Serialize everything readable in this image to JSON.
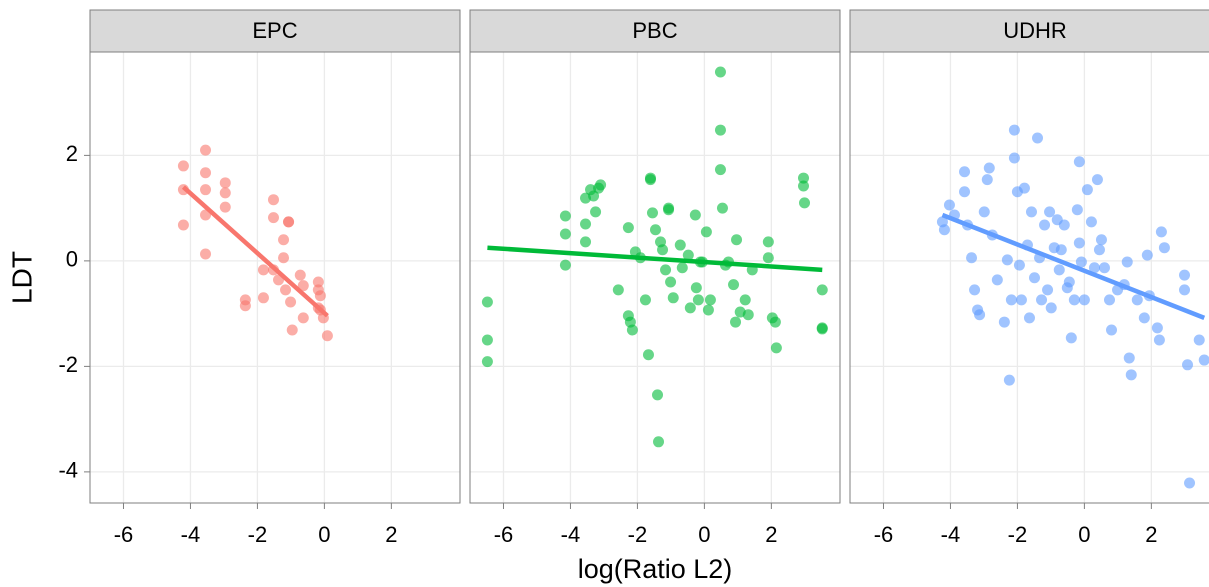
{
  "chart_data": [
    {
      "type": "scatter",
      "title": "EPC",
      "color": "#F8766D",
      "ylabel": "LDT",
      "grid": true,
      "xlim": [
        -7,
        4.05
      ],
      "ylim": [
        -4.59,
        3.96
      ],
      "xticks": [
        -6,
        -4,
        -2,
        0,
        2
      ],
      "yticks": [
        -4,
        -2,
        0,
        2
      ],
      "x": [
        -4.21,
        -4.21,
        -4.21,
        -3.55,
        -3.55,
        -3.55,
        -3.55,
        -3.55,
        -2.96,
        -2.96,
        -2.96,
        -2.36,
        -2.36,
        -1.82,
        -1.82,
        -1.52,
        -1.52,
        -1.52,
        -1.37,
        -1.22,
        -1.22,
        -1.16,
        -1.07,
        -1.07,
        -1.01,
        -0.96,
        -0.72,
        -0.63,
        -0.63,
        -0.18,
        -0.18,
        -0.18,
        -0.12,
        -0.12,
        -0.03,
        0.09
      ],
      "y": [
        1.8,
        1.35,
        0.68,
        2.1,
        1.67,
        1.35,
        0.87,
        0.13,
        1.48,
        1.29,
        1.02,
        -0.74,
        -0.85,
        -0.17,
        -0.7,
        1.16,
        0.82,
        -0.17,
        -0.36,
        0.4,
        0.06,
        -0.55,
        0.74,
        0.74,
        -0.78,
        -1.31,
        -0.27,
        -0.47,
        -1.08,
        -0.4,
        -0.55,
        -0.89,
        -0.66,
        -0.93,
        -1.08,
        -1.42
      ],
      "fit": {
        "x": [
          -4.21,
          0.09
        ],
        "y": [
          1.4,
          -1.04
        ]
      }
    },
    {
      "type": "scatter",
      "title": "PBC",
      "color": "#00BA38",
      "xlabel": "log(Ratio L2)",
      "grid": true,
      "xlim": [
        -7,
        4.05
      ],
      "ylim": [
        -4.59,
        3.96
      ],
      "xticks": [
        -6,
        -4,
        -2,
        0,
        2
      ],
      "yticks": [
        -4,
        -2,
        0,
        2
      ],
      "x": [
        -6.48,
        -6.48,
        -6.48,
        -4.15,
        -4.15,
        -4.15,
        -3.55,
        -3.55,
        -3.55,
        -3.4,
        -3.25,
        -3.16,
        -3.1,
        -3.31,
        -2.57,
        -2.27,
        -2.27,
        -2.21,
        -2.15,
        -2.06,
        -1.91,
        -1.76,
        -1.67,
        -1.61,
        -1.61,
        -1.55,
        -1.46,
        -1.4,
        -1.37,
        -1.31,
        -1.25,
        -1.16,
        -1.07,
        -1.07,
        -1.01,
        -0.93,
        -0.72,
        -0.66,
        -0.48,
        -0.42,
        -0.27,
        -0.24,
        -0.18,
        -0.12,
        -0.06,
        0.06,
        0.12,
        0.18,
        0.48,
        0.48,
        0.48,
        0.54,
        0.63,
        0.72,
        0.87,
        0.93,
        0.96,
        1.07,
        1.22,
        1.31,
        1.43,
        1.91,
        1.91,
        2.03,
        2.12,
        2.15,
        2.96,
        2.96,
        2.99,
        3.52,
        3.52,
        3.52
      ],
      "y": [
        -0.78,
        -1.5,
        -1.91,
        0.85,
        0.51,
        -0.08,
        1.19,
        0.7,
        0.36,
        1.35,
        0.93,
        1.38,
        1.44,
        1.23,
        -0.55,
        0.63,
        -1.04,
        -1.16,
        -1.31,
        0.17,
        0.06,
        -0.74,
        -1.78,
        1.54,
        1.57,
        0.91,
        0.59,
        -2.54,
        -3.43,
        0.36,
        0.21,
        -0.17,
        0.97,
        1.0,
        -0.4,
        -0.7,
        0.3,
        -0.13,
        0.11,
        -0.89,
        0.87,
        -0.51,
        -0.74,
        -0.02,
        -0.02,
        0.55,
        -0.93,
        -0.74,
        1.73,
        2.48,
        3.58,
        1.0,
        -0.08,
        -0.02,
        -0.45,
        -1.16,
        0.4,
        -0.97,
        -0.74,
        -1.02,
        -0.17,
        0.36,
        0.06,
        -1.08,
        -1.16,
        -1.65,
        1.57,
        1.42,
        1.1,
        -0.55,
        -1.27,
        -1.29
      ],
      "fit": {
        "x": [
          -6.48,
          3.52
        ],
        "y": [
          0.25,
          -0.17
        ]
      }
    },
    {
      "type": "scatter",
      "title": "UDHR",
      "color": "#619CFF",
      "grid": true,
      "xlim": [
        -7,
        4.05
      ],
      "ylim": [
        -4.59,
        3.96
      ],
      "xticks": [
        -6,
        -4,
        -2,
        0,
        2
      ],
      "yticks": [
        -4,
        -2,
        0,
        2
      ],
      "x": [
        -4.24,
        -4.18,
        -4.03,
        -3.88,
        -3.58,
        -3.58,
        -3.49,
        -3.37,
        -3.28,
        -3.19,
        -3.13,
        -2.99,
        -2.9,
        -2.84,
        -2.75,
        -2.6,
        -2.39,
        -2.3,
        -2.24,
        -2.18,
        -2.09,
        -2.09,
        -2.0,
        -1.94,
        -1.88,
        -1.79,
        -1.7,
        -1.64,
        -1.58,
        -1.49,
        -1.4,
        -1.34,
        -1.28,
        -1.19,
        -1.1,
        -1.04,
        -0.99,
        -0.9,
        -0.81,
        -0.75,
        -0.69,
        -0.6,
        -0.51,
        -0.45,
        -0.39,
        -0.3,
        -0.21,
        -0.15,
        -0.15,
        -0.09,
        0.0,
        0.09,
        0.21,
        0.3,
        0.39,
        0.45,
        0.51,
        0.6,
        0.75,
        0.81,
        0.99,
        1.19,
        1.28,
        1.34,
        1.4,
        1.58,
        1.79,
        1.88,
        1.94,
        2.18,
        2.24,
        2.3,
        2.39,
        2.99,
        2.99,
        3.08,
        3.14,
        3.43,
        3.58
      ],
      "y": [
        0.74,
        0.59,
        1.06,
        0.87,
        1.69,
        1.31,
        0.68,
        0.06,
        -0.55,
        -0.93,
        -1.02,
        0.93,
        1.54,
        1.76,
        0.49,
        -0.36,
        -1.16,
        0.02,
        -2.26,
        -0.74,
        2.48,
        1.95,
        1.31,
        -0.08,
        -0.74,
        1.38,
        0.3,
        -1.08,
        0.93,
        -0.32,
        2.33,
        0.06,
        -0.74,
        0.68,
        -0.55,
        0.93,
        -0.89,
        0.25,
        0.78,
        -0.17,
        0.21,
        0.68,
        -0.51,
        -0.4,
        -1.46,
        -0.74,
        0.97,
        1.88,
        0.34,
        -0.02,
        -0.74,
        1.35,
        0.74,
        -0.13,
        1.54,
        0.21,
        0.4,
        -0.13,
        -0.74,
        -1.31,
        -0.55,
        -0.45,
        -0.02,
        -1.84,
        -2.16,
        -0.74,
        -1.08,
        0.11,
        -0.66,
        -1.27,
        -1.5,
        0.55,
        0.25,
        -0.27,
        -0.55,
        -1.97,
        -4.21,
        -1.5,
        -1.88
      ],
      "fit": {
        "x": [
          -4.24,
          3.58
        ],
        "y": [
          0.87,
          -1.08
        ]
      }
    }
  ]
}
